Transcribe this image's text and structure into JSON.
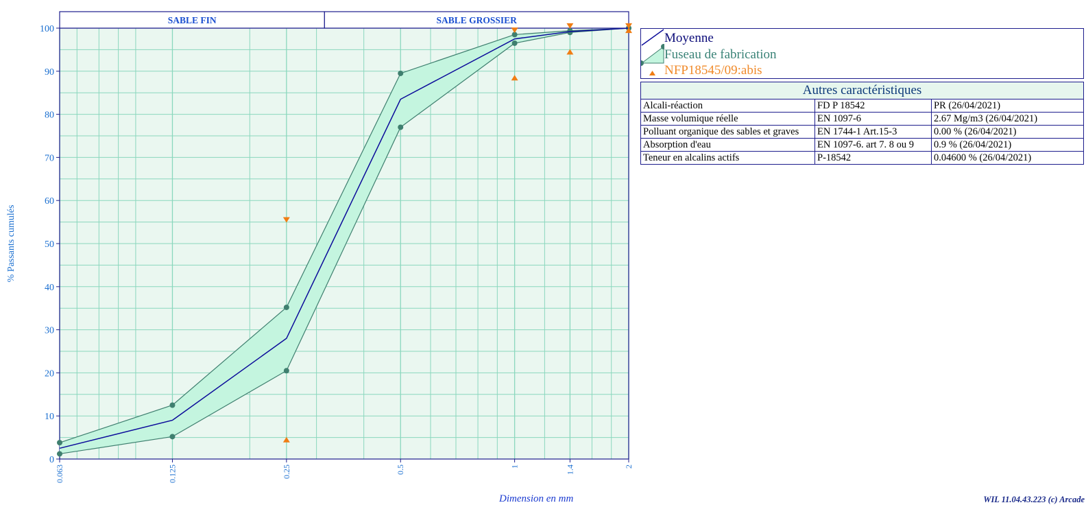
{
  "chart_data": {
    "type": "line",
    "xlabel": "Dimension en mm",
    "ylabel": "% Passants cumulés",
    "ylim": [
      0,
      100
    ],
    "yticks": [
      0,
      10,
      20,
      30,
      40,
      50,
      60,
      70,
      80,
      90,
      100
    ],
    "x_scale": "log",
    "xticks": [
      "0.063",
      "0.125",
      "0.25",
      "0.5",
      "1",
      "1.4",
      "2"
    ],
    "x_values": [
      0.063,
      0.125,
      0.25,
      0.5,
      1,
      1.4,
      2
    ],
    "zones": [
      {
        "label": "SABLE FIN",
        "x_from": 0.063,
        "x_to": 0.315
      },
      {
        "label": "SABLE GROSSIER",
        "x_from": 0.315,
        "x_to": 2
      }
    ],
    "series": [
      {
        "name": "Moyenne",
        "kind": "line",
        "x": [
          0.063,
          0.125,
          0.25,
          0.5,
          1,
          1.4,
          2
        ],
        "values": [
          2.5,
          9,
          28,
          83.5,
          97.5,
          99.2,
          100
        ]
      },
      {
        "name": "Fuseau de fabrication",
        "kind": "band",
        "x": [
          0.063,
          0.125,
          0.25,
          0.5,
          1,
          1.4,
          2
        ],
        "upper": [
          3.8,
          12.5,
          35.2,
          89.5,
          98.5,
          99.4,
          100
        ],
        "lower": [
          1.2,
          5.2,
          20.5,
          77,
          96.5,
          99.0,
          100
        ]
      },
      {
        "name": "NFP18545/09:abis",
        "kind": "markers",
        "upper_points": [
          {
            "x": 0.25,
            "y": 55.5
          },
          {
            "x": 1,
            "y": 99.5
          },
          {
            "x": 1.4,
            "y": 100.5
          },
          {
            "x": 2,
            "y": 100.5
          }
        ],
        "lower_points": [
          {
            "x": 0.25,
            "y": 4.5
          },
          {
            "x": 1,
            "y": 88.5
          },
          {
            "x": 1.4,
            "y": 94.5
          },
          {
            "x": 2,
            "y": 99.5
          }
        ]
      }
    ],
    "grid": true,
    "legend_position": "top-right"
  },
  "legend": {
    "moyenne": "Moyenne",
    "fuseau": "Fuseau de fabrication",
    "nfp": "NFP18545/09:abis"
  },
  "properties": {
    "title": "Autres caractéristiques",
    "rows": [
      [
        "Alcali-réaction",
        "FD P 18542",
        "PR  (26/04/2021)"
      ],
      [
        "Masse volumique réelle",
        "EN 1097-6",
        "2.67 Mg/m3  (26/04/2021)"
      ],
      [
        "Polluant organique des sables et graves",
        "EN 1744-1 Art.15-3",
        "0.00 %  (26/04/2021)"
      ],
      [
        "Absorption d'eau",
        "EN 1097-6. art 7. 8 ou 9",
        "0.9 %  (26/04/2021)"
      ],
      [
        "Teneur en alcalins actifs",
        "P-18542",
        "0.04600 %  (26/04/2021)"
      ]
    ]
  },
  "footer": {
    "version": "WIL 11.04.43.223 (c) Arcade"
  },
  "colors": {
    "plot_bg": "#eaf7f0",
    "grid": "#8ad7bd",
    "frame": "#1c1c8c",
    "band_fill": "#c4f5df",
    "band_line": "#3f7f6f",
    "mean_line": "#0b0b9a",
    "markers": "#f07d14",
    "axis_text": "#1a6fd0"
  }
}
